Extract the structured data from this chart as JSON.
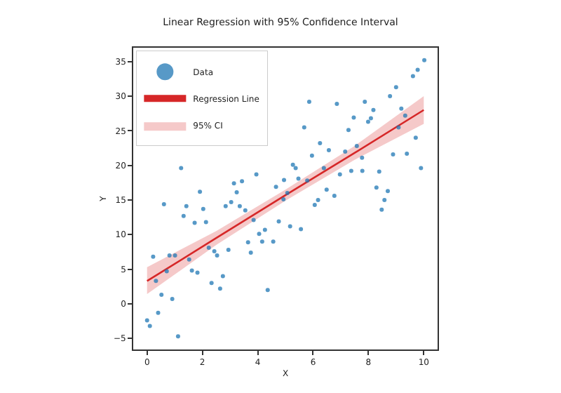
{
  "chart_data": {
    "type": "scatter",
    "title": "Linear Regression with 95% Confidence Interval",
    "xlabel": "X",
    "ylabel": "Y",
    "xlim": [
      -0.5,
      10.5
    ],
    "ylim": [
      -6.6,
      37
    ],
    "xticks": [
      0,
      2,
      4,
      6,
      8,
      10
    ],
    "yticks": [
      -5,
      0,
      5,
      10,
      15,
      20,
      25,
      30,
      35
    ],
    "grid": false,
    "legend": "top left",
    "series": [
      {
        "name": "Data",
        "marker": "circle",
        "color": "#1f77b4",
        "x": [
          0,
          0.1,
          0.22,
          0.32,
          0.4,
          0.52,
          0.61,
          0.71,
          0.81,
          0.91,
          1.01,
          1.12,
          1.23,
          1.32,
          1.42,
          1.52,
          1.62,
          1.72,
          1.82,
          1.91,
          2.03,
          2.13,
          2.23,
          2.33,
          2.43,
          2.53,
          2.64,
          2.74,
          2.84,
          2.94,
          3.04,
          3.14,
          3.24,
          3.35,
          3.43,
          3.55,
          3.65,
          3.75,
          3.85,
          3.95,
          4.05,
          4.16,
          4.26,
          4.36,
          4.56,
          4.66,
          4.76,
          4.93,
          4.95,
          5.07,
          5.17,
          5.27,
          5.37,
          5.47,
          5.56,
          5.68,
          5.79,
          5.86,
          5.96,
          6.06,
          6.18,
          6.25,
          6.39,
          6.49,
          6.57,
          6.77,
          6.86,
          6.97,
          7.16,
          7.28,
          7.38,
          7.47,
          7.58,
          7.77,
          7.78,
          7.87,
          7.99,
          8.09,
          8.18,
          8.29,
          8.39,
          8.48,
          8.58,
          8.7,
          8.78,
          8.89,
          9.0,
          9.09,
          9.19,
          9.33,
          9.39,
          9.61,
          9.71,
          9.78,
          9.9,
          10.02
        ],
        "values": [
          -2.4,
          -3.2,
          6.8,
          3.3,
          -1.3,
          1.3,
          14.4,
          4.7,
          7.0,
          0.7,
          7.0,
          -4.7,
          19.6,
          12.7,
          14.1,
          6.4,
          4.8,
          11.7,
          4.5,
          16.2,
          13.7,
          11.8,
          8.1,
          3.0,
          7.6,
          7.0,
          2.2,
          4.0,
          14.1,
          7.8,
          14.7,
          17.4,
          16.1,
          14.1,
          17.7,
          13.5,
          8.9,
          7.4,
          12.1,
          18.7,
          10.1,
          9.0,
          10.7,
          2.0,
          9.0,
          16.9,
          11.9,
          15.1,
          17.9,
          16.0,
          11.2,
          20.1,
          19.6,
          18.1,
          10.8,
          25.5,
          17.8,
          29.2,
          21.4,
          14.3,
          15.0,
          23.2,
          19.6,
          16.5,
          22.2,
          15.6,
          28.9,
          18.7,
          22.0,
          25.1,
          19.2,
          26.9,
          22.8,
          21.1,
          19.2,
          29.2,
          26.3,
          26.8,
          28.0,
          16.8,
          19.1,
          13.6,
          15.0,
          16.3,
          30.0,
          21.6,
          31.3,
          25.5,
          28.2,
          27.2,
          21.7,
          32.9,
          24.0,
          33.8,
          19.6,
          35.2
        ]
      },
      {
        "name": "Regression Line",
        "type": "line",
        "color": "#d62728",
        "x": [
          0,
          2.5,
          5,
          7.5,
          10
        ],
        "values": [
          3.3,
          9.5,
          15.7,
          21.8,
          28.0
        ],
        "lower": [
          1.4,
          8.5,
          14.9,
          20.8,
          26.0
        ],
        "upper": [
          5.3,
          10.5,
          16.5,
          22.8,
          30.0
        ]
      },
      {
        "name": "95% CI",
        "type": "area",
        "color": "#f5c9c9"
      }
    ]
  }
}
